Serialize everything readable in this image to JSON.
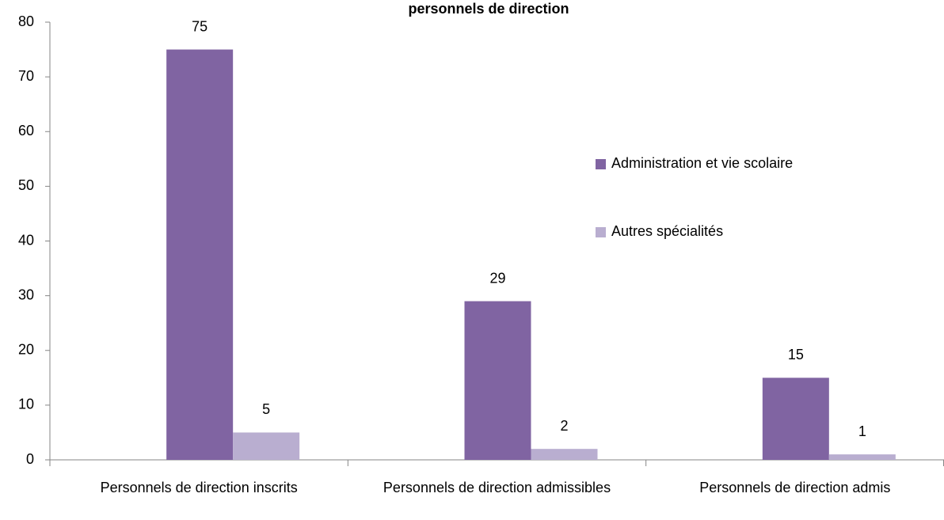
{
  "chart_data": {
    "type": "bar",
    "title": "personnels de direction",
    "categories": [
      "Personnels de direction inscrits",
      "Personnels de direction admissibles",
      "Personnels de direction admis"
    ],
    "series": [
      {
        "name": "Administration et vie scolaire",
        "color": "#8064a2",
        "values": [
          75,
          29,
          15
        ]
      },
      {
        "name": "Autres spécialités",
        "color": "#b9aed0",
        "values": [
          5,
          2,
          1
        ]
      }
    ],
    "ylim": [
      0,
      80
    ],
    "yticks": [
      0,
      10,
      20,
      30,
      40,
      50,
      60,
      70,
      80
    ],
    "grid": false,
    "legend": "right"
  }
}
